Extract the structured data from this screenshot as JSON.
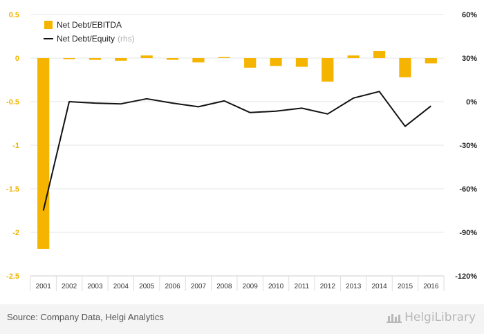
{
  "chart_data": {
    "type": "bar-line-combo",
    "categories": [
      "2001",
      "2002",
      "2003",
      "2004",
      "2005",
      "2006",
      "2007",
      "2008",
      "2009",
      "2010",
      "2011",
      "2012",
      "2013",
      "2014",
      "2015",
      "2016"
    ],
    "series": [
      {
        "name": "Net Debt/EBITDA",
        "type": "bar",
        "axis": "left",
        "color": "#f5b400",
        "values": [
          -2.19,
          -0.01,
          -0.02,
          -0.03,
          0.03,
          -0.02,
          -0.05,
          0.0,
          -0.11,
          -0.09,
          -0.1,
          -0.27,
          0.03,
          0.08,
          -0.22,
          -0.06
        ]
      },
      {
        "name": "Net Debt/Equity",
        "name_note": "(rhs)",
        "type": "line",
        "axis": "right",
        "color": "#111111",
        "values": [
          -75,
          0,
          -1,
          -1.5,
          2,
          -1,
          -3.5,
          0.5,
          -7.5,
          -6.5,
          -4.5,
          -8.5,
          2.5,
          7,
          -17,
          -3
        ]
      }
    ],
    "y_left": {
      "min": -2.5,
      "max": 0.5,
      "ticks": [
        0.5,
        0,
        -0.5,
        -1,
        -1.5,
        -2,
        -2.5
      ],
      "tick_labels": [
        "0.5",
        "0",
        "-0.5",
        "-1",
        "-1.5",
        "-2",
        "-2.5"
      ]
    },
    "y_right": {
      "min": -120,
      "max": 60,
      "ticks": [
        60,
        30,
        0,
        -30,
        -60,
        -90,
        -120
      ],
      "tick_labels": [
        "60%",
        "30%",
        "0%",
        "-30%",
        "-60%",
        "-90%",
        "-120%"
      ]
    },
    "grid": true,
    "legend_position": "top-left"
  },
  "footer": {
    "source": "Source: Company Data, Helgi Analytics",
    "brand": "HelgiLibrary"
  }
}
